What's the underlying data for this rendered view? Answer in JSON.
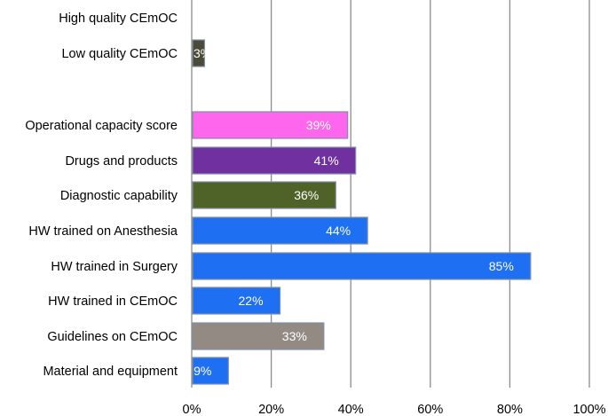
{
  "chart_data": {
    "type": "bar",
    "orientation": "horizontal",
    "title": "",
    "xlabel": "",
    "ylabel": "",
    "xlim": [
      0,
      100
    ],
    "grid": true,
    "legend": "none",
    "tick_labels": [
      "0%",
      "20%",
      "40%",
      "60%",
      "80%",
      "100%"
    ],
    "ticks": [
      0,
      20,
      40,
      60,
      80,
      100
    ],
    "categories": [
      "High quality CEmOC",
      "Low quality CEmOC",
      "",
      "Operational capacity score",
      "Drugs and products",
      "Diagnostic capability",
      "HW trained on Anesthesia",
      "HW trained in Surgery",
      "HW trained in CEmOC",
      "Guidelines on CEmOC",
      "Material and equipment"
    ],
    "values": [
      null,
      3,
      null,
      39,
      41,
      36,
      44,
      85,
      22,
      33,
      9
    ],
    "value_labels": [
      "",
      "3%",
      "",
      "39%",
      "41%",
      "36%",
      "44%",
      "85%",
      "22%",
      "33%",
      "9%"
    ],
    "colors": [
      "#ffffff",
      "#4a4a38",
      "#ffffff",
      "#ff66ee",
      "#7030a0",
      "#4f6228",
      "#1f6ff2",
      "#1f6ff2",
      "#1f6ff2",
      "#948a84",
      "#1f6ff2"
    ]
  }
}
